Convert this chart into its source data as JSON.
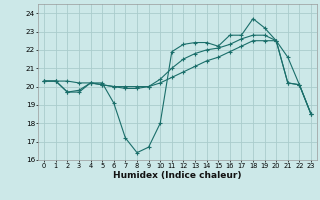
{
  "xlabel": "Humidex (Indice chaleur)",
  "bg_color": "#cce8e8",
  "grid_color": "#aacccc",
  "line_color": "#1a6e6a",
  "xlim": [
    -0.5,
    23.5
  ],
  "ylim": [
    16,
    24.5
  ],
  "yticks": [
    16,
    17,
    18,
    19,
    20,
    21,
    22,
    23,
    24
  ],
  "xticks": [
    0,
    1,
    2,
    3,
    4,
    5,
    6,
    7,
    8,
    9,
    10,
    11,
    12,
    13,
    14,
    15,
    16,
    17,
    18,
    19,
    20,
    21,
    22,
    23
  ],
  "line1_x": [
    0,
    1,
    2,
    3,
    4,
    5,
    6,
    7,
    8,
    9,
    10,
    11,
    12,
    13,
    14,
    15,
    16,
    17,
    18,
    19,
    20,
    21,
    22,
    23
  ],
  "line1_y": [
    20.3,
    20.3,
    19.7,
    19.7,
    20.2,
    20.2,
    19.1,
    17.2,
    16.4,
    16.7,
    18.0,
    21.9,
    22.3,
    22.4,
    22.4,
    22.2,
    22.8,
    22.8,
    23.7,
    23.2,
    22.5,
    20.2,
    20.1,
    18.5
  ],
  "line2_x": [
    0,
    1,
    2,
    3,
    4,
    5,
    6,
    7,
    8,
    9,
    10,
    11,
    12,
    13,
    14,
    15,
    16,
    17,
    18,
    19,
    20,
    21,
    22,
    23
  ],
  "line2_y": [
    20.3,
    20.3,
    19.7,
    19.8,
    20.2,
    20.1,
    20.0,
    19.9,
    19.9,
    20.0,
    20.4,
    21.0,
    21.5,
    21.8,
    22.0,
    22.1,
    22.3,
    22.6,
    22.8,
    22.8,
    22.5,
    20.2,
    20.1,
    18.5
  ],
  "line3_x": [
    0,
    1,
    2,
    3,
    4,
    5,
    6,
    7,
    8,
    9,
    10,
    11,
    12,
    13,
    14,
    15,
    16,
    17,
    18,
    19,
    20,
    21,
    22,
    23
  ],
  "line3_y": [
    20.3,
    20.3,
    20.3,
    20.2,
    20.2,
    20.1,
    20.0,
    20.0,
    20.0,
    20.0,
    20.2,
    20.5,
    20.8,
    21.1,
    21.4,
    21.6,
    21.9,
    22.2,
    22.5,
    22.5,
    22.5,
    21.6,
    20.1,
    18.5
  ]
}
